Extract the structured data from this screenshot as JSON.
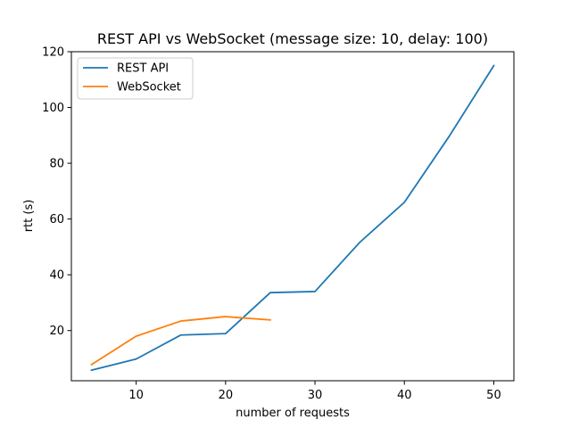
{
  "chart_data": {
    "type": "line",
    "title": "REST API vs WebSocket (message size: 10, delay: 100)",
    "xlabel": "number of requests",
    "ylabel": "rtt (s)",
    "xlim": [
      2.75,
      52.25
    ],
    "ylim": [
      2.0,
      120.0
    ],
    "xticks": [
      10,
      20,
      30,
      40,
      50
    ],
    "yticks": [
      20,
      40,
      60,
      80,
      100,
      120
    ],
    "grid": false,
    "legend_position": "top-left",
    "series": [
      {
        "name": "REST API",
        "color": "#1f77b4",
        "x": [
          5,
          10,
          15,
          20,
          25,
          30,
          35,
          40,
          45,
          50
        ],
        "y": [
          5.8,
          9.8,
          18.4,
          18.9,
          33.6,
          34.0,
          51.6,
          66.0,
          89.6,
          115.0
        ]
      },
      {
        "name": "WebSocket",
        "color": "#ff7f0e",
        "x": [
          5,
          10,
          15,
          20,
          25
        ],
        "y": [
          7.8,
          18.0,
          23.4,
          25.0,
          23.8
        ]
      }
    ]
  }
}
